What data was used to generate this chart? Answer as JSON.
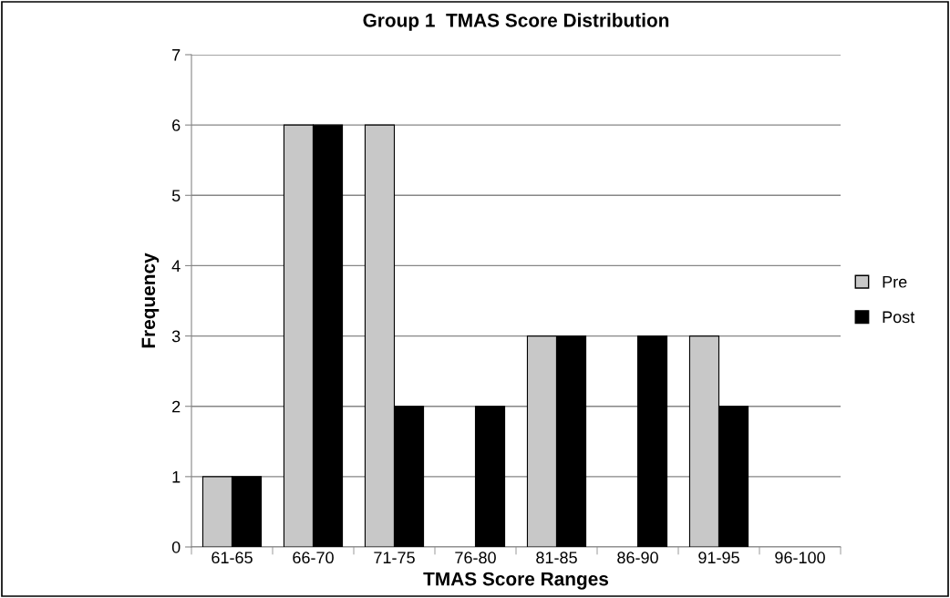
{
  "chart_data": {
    "type": "bar",
    "title": "Group 1  TMAS Score Distribution",
    "xlabel": "TMAS Score Ranges",
    "ylabel": "Frequency",
    "categories": [
      "61-65",
      "66-70",
      "71-75",
      "76-80",
      "81-85",
      "86-90",
      "91-95",
      "96-100"
    ],
    "series": [
      {
        "name": "Pre",
        "color": "#c8c8c8",
        "values": [
          1,
          6,
          6,
          null,
          3,
          null,
          3,
          null
        ]
      },
      {
        "name": "Post",
        "color": "#000000",
        "values": [
          1,
          6,
          2,
          2,
          3,
          3,
          2,
          null
        ]
      }
    ],
    "ylim": [
      0,
      7
    ],
    "yticks": [
      0,
      1,
      2,
      3,
      4,
      5,
      6,
      7
    ],
    "grid": "y",
    "legend": "right"
  }
}
